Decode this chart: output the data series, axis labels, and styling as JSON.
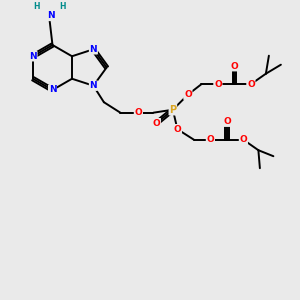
{
  "background_color": "#eaeaea",
  "atom_colors": {
    "N": "#0000FF",
    "O": "#FF0000",
    "P": "#DAA520",
    "C": "#000000",
    "H": "#008B8B"
  },
  "bond_color": "#000000",
  "bond_width": 1.4,
  "figsize": [
    3.0,
    3.0
  ],
  "dpi": 100,
  "xlim": [
    0,
    10
  ],
  "ylim": [
    0,
    10
  ]
}
